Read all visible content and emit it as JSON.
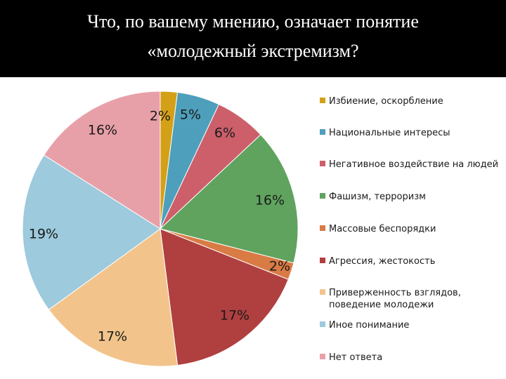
{
  "title": "Что, по вашему мнению, означает понятие\n«молодежный экстремизм?",
  "chart_data": {
    "type": "pie",
    "title": "Что, по вашему мнению, означает понятие «молодежный экстремизм?",
    "slices": [
      {
        "label": "Избиение, оскорбление",
        "value": 2,
        "display": "2%",
        "color": "#d4a017"
      },
      {
        "label": "Национальные интересы",
        "value": 5,
        "display": "5%",
        "color": "#4e9fbb"
      },
      {
        "label": "Негативное воздействие на людей",
        "value": 6,
        "display": "6%",
        "color": "#cc5f6a"
      },
      {
        "label": "Фашизм, терроризм",
        "value": 16,
        "display": "16%",
        "color": "#5fa35f"
      },
      {
        "label": "Массовые беспорядки",
        "value": 2,
        "display": "2%",
        "color": "#d97b45"
      },
      {
        "label": "Агрессия, жестокость",
        "value": 17,
        "display": "17%",
        "color": "#b03f3f"
      },
      {
        "label": "Приверженность взглядов,\nповедение молодежи",
        "value": 17,
        "display": "17%",
        "color": "#f2c48b"
      },
      {
        "label": "Иное понимание",
        "value": 19,
        "display": "19%",
        "color": "#9dcadc"
      },
      {
        "label": "Нет ответа",
        "value": 16,
        "display": "16%",
        "color": "#e8a0a8"
      }
    ],
    "legend_position": "right"
  }
}
